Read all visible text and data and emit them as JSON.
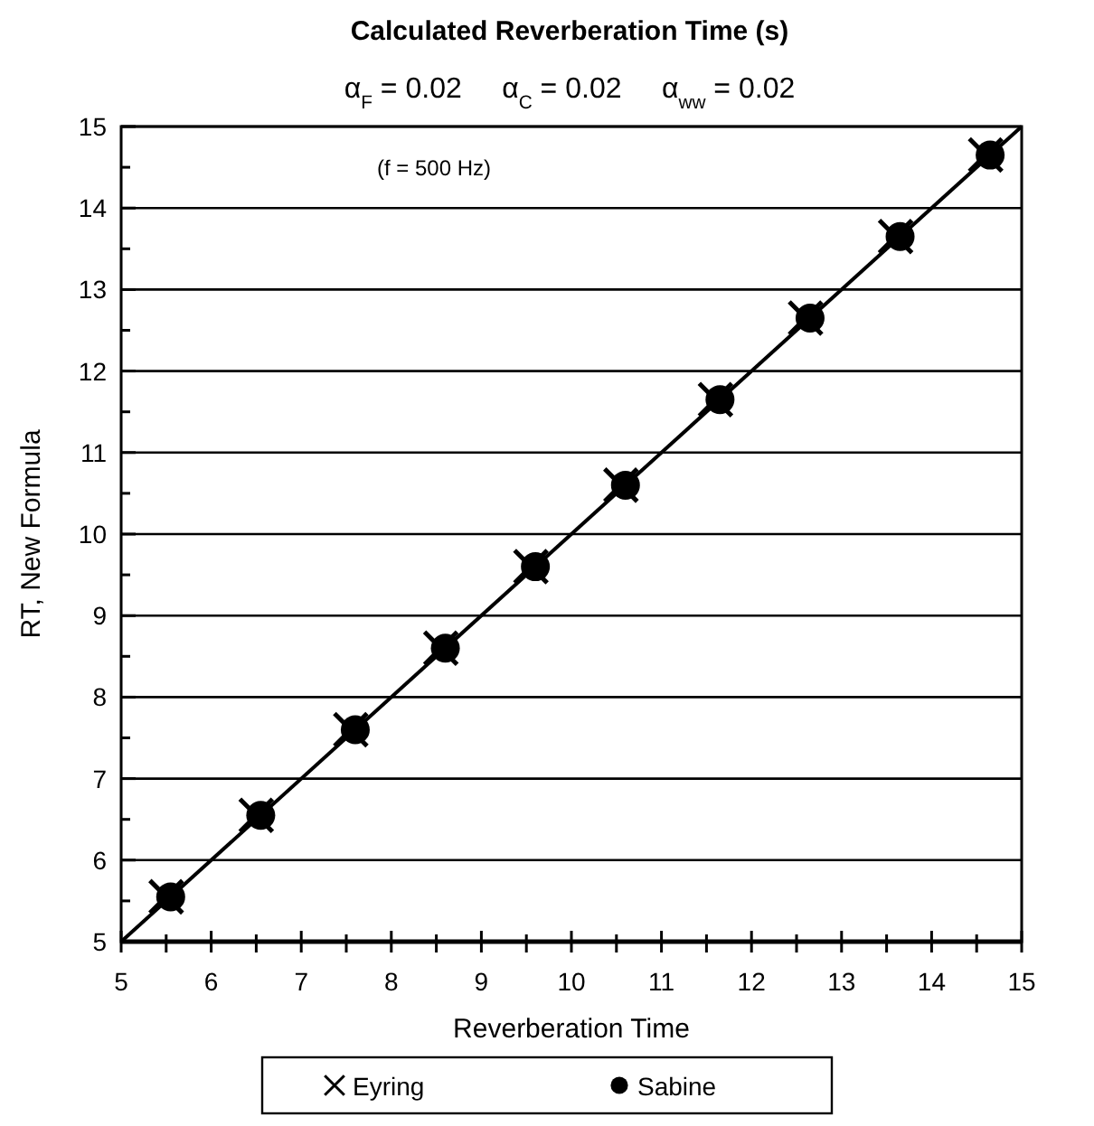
{
  "chart_data": {
    "type": "scatter",
    "title": "Calculated Reverberation Time (s)",
    "subtitle": "α$_{F}$ = 0.02     α$_{C}$ = 0.02     α$_{ww}$ = 0.02",
    "xlabel": "Reverberation Time",
    "ylabel": "RT, New Formula",
    "annotations": [
      "(f = 500 Hz)"
    ],
    "xlim": [
      5,
      15
    ],
    "ylim": [
      5,
      15
    ],
    "xticks": [
      5,
      {
        "value": 5.5,
        "label": null
      },
      6,
      {
        "value": 6.5,
        "label": null
      },
      7,
      {
        "value": 7.5,
        "label": null
      },
      8,
      {
        "value": 8.5,
        "label": null
      },
      9,
      {
        "value": 9.5,
        "label": null
      },
      10,
      {
        "value": 10.5,
        "label": null
      },
      11,
      {
        "value": 11.5,
        "label": null
      },
      12,
      {
        "value": 12.5,
        "label": null
      },
      13,
      {
        "value": 13.5,
        "label": null
      },
      14,
      {
        "value": 14.5,
        "label": null
      },
      15
    ],
    "yticks": [
      5,
      {
        "value": 5.5,
        "label": null
      },
      6,
      {
        "value": 6.5,
        "label": null
      },
      7,
      {
        "value": 7.5,
        "label": null
      },
      8,
      {
        "value": 8.5,
        "label": null
      },
      9,
      {
        "value": 9.5,
        "label": null
      },
      10,
      {
        "value": 10.5,
        "label": null
      },
      11,
      {
        "value": 11.5,
        "label": null
      },
      12,
      {
        "value": 12.5,
        "label": null
      },
      13,
      {
        "value": 13.5,
        "label": null
      },
      14,
      {
        "value": 14.5,
        "label": null
      },
      15
    ],
    "grid": "y",
    "legend": "bottom",
    "series": [
      {
        "type": "line",
        "color": "#000000",
        "marker": "none",
        "line_style": "solid",
        "x": [
          5,
          15
        ],
        "values": [
          5,
          15
        ]
      },
      {
        "name": "Eyring",
        "color": "#000000",
        "marker": "cross",
        "x": [
          5.5,
          6.5,
          7.55,
          8.55,
          9.55,
          10.55,
          11.6,
          12.6,
          13.6,
          14.6
        ],
        "values": [
          5.55,
          6.55,
          7.6,
          8.6,
          9.6,
          10.6,
          11.65,
          12.65,
          13.65,
          14.65
        ]
      },
      {
        "name": "Sabine",
        "color": "#000000",
        "marker": "circle",
        "x": [
          5.55,
          6.55,
          7.6,
          8.6,
          9.6,
          10.6,
          11.65,
          12.65,
          13.65,
          14.65
        ],
        "values": [
          5.55,
          6.55,
          7.6,
          8.6,
          9.6,
          10.6,
          11.65,
          12.65,
          13.65,
          14.65
        ]
      }
    ]
  }
}
